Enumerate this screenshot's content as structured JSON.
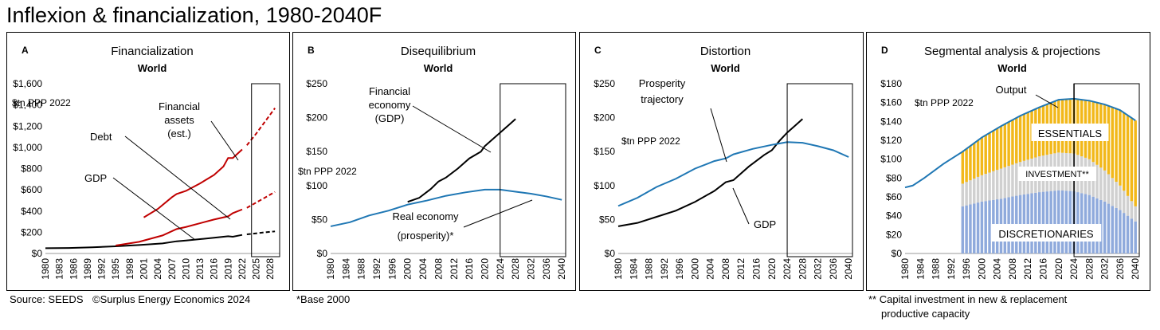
{
  "header": {
    "title": "Inflexion & financialization, 1980-2040F"
  },
  "footer": {
    "source": "Source: SEEDS",
    "copyright": "©Surplus Energy Economics 2024",
    "base_note": "*Base 2000",
    "capex_note_1": "** Capital investment in new & replacement",
    "capex_note_2": "productive capacity"
  },
  "chart_data": [
    {
      "id": "A",
      "type": "line",
      "title": "Financialization",
      "subtitle": "World",
      "unit_label": "$tn PPP 2022",
      "ylim": [
        0,
        1600
      ],
      "y_ticks": [
        "$0",
        "$200",
        "$400",
        "$600",
        "$800",
        "$1,000",
        "$1,200",
        "$1,400",
        "$1,600"
      ],
      "x_range": [
        1980,
        2030
      ],
      "x_ticks": [
        "1980",
        "1983",
        "1986",
        "1989",
        "1992",
        "1995",
        "1998",
        "2001",
        "2004",
        "2007",
        "2010",
        "2013",
        "2016",
        "2019",
        "2022",
        "2025",
        "2028"
      ],
      "projection_box_from": 2024,
      "annotations": [
        "Financial",
        "assets",
        "(est.)",
        "Debt",
        "GDP"
      ],
      "series": [
        {
          "color": "#000000",
          "x": [
            1980,
            1985,
            1990,
            1995,
            2000,
            2005,
            2008,
            2010,
            2013,
            2016,
            2019,
            2020,
            2022
          ],
          "y": [
            50,
            52,
            58,
            68,
            80,
            95,
            115,
            122,
            135,
            148,
            162,
            158,
            175
          ]
        },
        {
          "color": "#000000",
          "dashed": true,
          "x": [
            2023,
            2025,
            2027,
            2029
          ],
          "y": [
            180,
            190,
            200,
            208
          ]
        },
        {
          "color": "#c00000",
          "x": [
            1995,
            2000,
            2005,
            2008,
            2010,
            2013,
            2016,
            2019,
            2020,
            2022
          ],
          "y": [
            75,
            110,
            170,
            230,
            250,
            285,
            320,
            350,
            380,
            415
          ]
        },
        {
          "color": "#c00000",
          "dashed": true,
          "x": [
            2023,
            2025,
            2027,
            2029
          ],
          "y": [
            430,
            480,
            530,
            580
          ]
        },
        {
          "color": "#c00000",
          "x": [
            2001,
            2004,
            2007,
            2008,
            2010,
            2013,
            2016,
            2018,
            2019,
            2020,
            2021,
            2022
          ],
          "y": [
            340,
            420,
            530,
            560,
            590,
            660,
            740,
            820,
            900,
            900,
            940,
            980
          ]
        },
        {
          "color": "#c00000",
          "dashed": true,
          "x": [
            2023,
            2025,
            2027,
            2029
          ],
          "y": [
            1020,
            1130,
            1250,
            1370
          ]
        }
      ]
    },
    {
      "id": "B",
      "type": "line",
      "title": "Disequilibrium",
      "subtitle": "World",
      "unit_label": "$tn PPP 2022",
      "ylim": [
        0,
        250
      ],
      "y_ticks": [
        "$0",
        "$50",
        "$100",
        "$150",
        "$200",
        "$250"
      ],
      "x_range": [
        1980,
        2041
      ],
      "x_ticks": [
        "1980",
        "1984",
        "1988",
        "1992",
        "1996",
        "2000",
        "2004",
        "2008",
        "2012",
        "2016",
        "2020",
        "2024",
        "2028",
        "2032",
        "2036",
        "2040"
      ],
      "projection_box_from": 2024,
      "annotations": [
        "Financial",
        "economy",
        "(GDP)",
        "Real economy",
        "(prosperity)*"
      ],
      "series": [
        {
          "color": "#000000",
          "x": [
            2000,
            2003,
            2006,
            2008,
            2010,
            2013,
            2016,
            2019,
            2020,
            2022,
            2024,
            2026,
            2028
          ],
          "y": [
            76,
            82,
            95,
            106,
            112,
            125,
            140,
            150,
            158,
            168,
            178,
            188,
            198
          ]
        },
        {
          "color": "#1f77b4",
          "x": [
            1980,
            1985,
            1990,
            1995,
            2000,
            2005,
            2010,
            2015,
            2020,
            2024,
            2028,
            2032,
            2036,
            2040
          ],
          "y": [
            40,
            46,
            56,
            63,
            72,
            78,
            85,
            90,
            94,
            94,
            91,
            88,
            84,
            79
          ]
        }
      ]
    },
    {
      "id": "C",
      "type": "line",
      "title": "Distortion",
      "subtitle": "World",
      "unit_label": "$tn PPP 2022",
      "ylim": [
        0,
        250
      ],
      "y_ticks": [
        "$0",
        "$50",
        "$100",
        "$150",
        "$200",
        "$250"
      ],
      "x_range": [
        1980,
        2041
      ],
      "x_ticks": [
        "1980",
        "1984",
        "1988",
        "1992",
        "1996",
        "2000",
        "2004",
        "2008",
        "2012",
        "2016",
        "2020",
        "2024",
        "2028",
        "2032",
        "2036",
        "2040"
      ],
      "projection_box_from": 2024,
      "annotations": [
        "Prosperity",
        "trajectory",
        "GDP"
      ],
      "series": [
        {
          "color": "#000000",
          "x": [
            1980,
            1985,
            1990,
            1995,
            2000,
            2005,
            2008,
            2010,
            2014,
            2018,
            2020,
            2022,
            2024,
            2026,
            2028
          ],
          "y": [
            40,
            45,
            54,
            63,
            76,
            92,
            105,
            108,
            128,
            145,
            152,
            166,
            178,
            188,
            198
          ]
        },
        {
          "color": "#1f77b4",
          "x": [
            1980,
            1985,
            1990,
            1995,
            2000,
            2005,
            2008,
            2010,
            2015,
            2020,
            2022,
            2024,
            2028,
            2032,
            2036,
            2040
          ],
          "y": [
            70,
            82,
            98,
            110,
            125,
            136,
            140,
            146,
            154,
            160,
            162,
            164,
            163,
            158,
            152,
            142
          ]
        }
      ]
    },
    {
      "id": "D",
      "type": "bar",
      "title": "Segmental analysis & projections",
      "subtitle": "World",
      "unit_label": "$tn PPP 2022",
      "ylim": [
        0,
        180
      ],
      "y_ticks": [
        "$0",
        "$20",
        "$40",
        "$60",
        "$80",
        "$100",
        "$120",
        "$140",
        "$160",
        "$180"
      ],
      "x_range": [
        1980,
        2041
      ],
      "x_ticks": [
        "1980",
        "1984",
        "1988",
        "1992",
        "1996",
        "2000",
        "2004",
        "2008",
        "2012",
        "2016",
        "2020",
        "2024",
        "2028",
        "2032",
        "2036",
        "2040"
      ],
      "projection_box_from": 2024,
      "annotations": [
        "Output",
        "ESSENTIALS",
        "INVESTMENT**",
        "DISCRETIONARIES"
      ],
      "stack_series": [
        {
          "name": "DISCRETIONARIES",
          "color": "#8faadc",
          "x": [
            1995,
            2000,
            2005,
            2010,
            2015,
            2020,
            2024,
            2028,
            2032,
            2036,
            2040
          ],
          "y": [
            50,
            55,
            58,
            62,
            65,
            67,
            66,
            62,
            55,
            46,
            34
          ]
        },
        {
          "name": "INVESTMENT**",
          "color": "#d0d0d0",
          "x": [
            1995,
            2000,
            2005,
            2010,
            2015,
            2020,
            2024,
            2028,
            2032,
            2036,
            2040
          ],
          "y": [
            24,
            28,
            32,
            35,
            38,
            40,
            40,
            38,
            33,
            26,
            16
          ]
        },
        {
          "name": "ESSENTIALS",
          "color": "#f2b81a",
          "x": [
            1995,
            2000,
            2005,
            2010,
            2015,
            2020,
            2024,
            2028,
            2032,
            2036,
            2040
          ],
          "y": [
            34,
            40,
            45,
            49,
            52,
            56,
            58,
            62,
            70,
            80,
            91
          ]
        }
      ],
      "output": {
        "color": "#1f77b4",
        "x": [
          1980,
          1982,
          1985,
          1990,
          1995,
          2000,
          2005,
          2010,
          2015,
          2020,
          2024,
          2028,
          2032,
          2036,
          2040
        ],
        "y": [
          70,
          72,
          80,
          95,
          108,
          123,
          135,
          146,
          155,
          163,
          164,
          162,
          158,
          152,
          141
        ]
      }
    }
  ]
}
